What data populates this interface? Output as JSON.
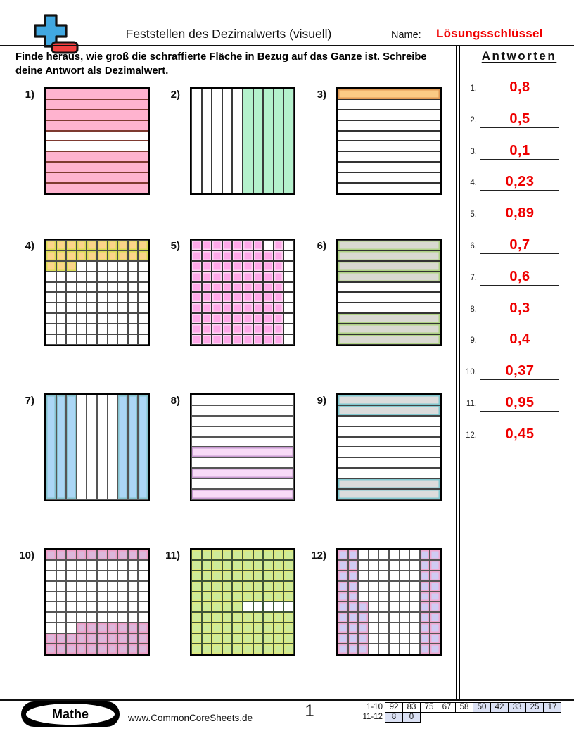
{
  "header": {
    "title": "Feststellen des Dezimalwerts (visuell)",
    "name_label": "Name:",
    "answer_key_label": "Lösungsschlüssel",
    "answer_key_color": "#f00000",
    "instructions": "Finde heraus, wie groß die schraffierte Fläche in Bezug auf das Ganze ist. Schreibe deine Antwort als Dezimalwert.",
    "logo_icon": "plus-minus-logo",
    "logo_colors": {
      "plus": "#41a8e1",
      "minus": "#f24040"
    }
  },
  "answers": {
    "title": "Antworten",
    "value_color": "#ee0000",
    "items": [
      {
        "num": "1.",
        "value": "0,8"
      },
      {
        "num": "2.",
        "value": "0,5"
      },
      {
        "num": "3.",
        "value": "0,1"
      },
      {
        "num": "4.",
        "value": "0,23"
      },
      {
        "num": "5.",
        "value": "0,89"
      },
      {
        "num": "6.",
        "value": "0,7"
      },
      {
        "num": "7.",
        "value": "0,6"
      },
      {
        "num": "8.",
        "value": "0,3"
      },
      {
        "num": "9.",
        "value": "0,4"
      },
      {
        "num": "10.",
        "value": "0,37"
      },
      {
        "num": "11.",
        "value": "0,95"
      },
      {
        "num": "12.",
        "value": "0,45"
      }
    ]
  },
  "problems": [
    {
      "label": "1)",
      "type": "rows",
      "fill": "#ffb3cf",
      "line": "#7e3a30",
      "edge": "",
      "pattern": [
        "1111001111"
      ]
    },
    {
      "label": "2)",
      "type": "cols",
      "fill": "#b4f1cc",
      "line": "#3a3a3a",
      "edge": "",
      "pattern": [
        "0000011111"
      ]
    },
    {
      "label": "3)",
      "type": "rows",
      "fill": "#fbcb85",
      "line": "#333333",
      "edge": "#e09a55",
      "pattern": [
        "1000000000"
      ]
    },
    {
      "label": "4)",
      "type": "grid",
      "fill": "#fbd48a",
      "line": "#4a4a4a",
      "edge": "#d9dd55",
      "pattern": [
        "1111111111",
        "1111111111",
        "1110000000",
        "0000000000",
        "0000000000",
        "0000000000",
        "0000000000",
        "0000000000",
        "0000000000",
        "0000000000"
      ]
    },
    {
      "label": "5)",
      "type": "grid",
      "fill": "#ffa9e9",
      "line": "#333333",
      "edge": "#ffd6f4",
      "pattern": [
        "1111111010",
        "1111111110",
        "1111111110",
        "1111111110",
        "1111111110",
        "1111111110",
        "1111111110",
        "1111111110",
        "1111111110",
        "1111111110"
      ]
    },
    {
      "label": "6)",
      "type": "rows",
      "fill": "#d9d9d1",
      "line": "#333333",
      "edge": "#aed184",
      "pattern": [
        "1111000111"
      ]
    },
    {
      "label": "7)",
      "type": "cols",
      "fill": "#abd6f5",
      "line": "#555555",
      "edge": "#85c2cc",
      "pattern": [
        "1110000111"
      ]
    },
    {
      "label": "8)",
      "type": "rows",
      "fill": "#f8daf7",
      "line": "#555555",
      "edge": "#c79ad0",
      "pattern": [
        "0000010101"
      ]
    },
    {
      "label": "9)",
      "type": "rows",
      "fill": "#dcdcdc",
      "line": "#444444",
      "edge": "#82c8cf",
      "pattern": [
        "1100000011"
      ]
    },
    {
      "label": "10)",
      "type": "grid",
      "fill": "#dcb7db",
      "line": "#555555",
      "edge": "#f09ec6",
      "pattern": [
        "1111111111",
        "0000000000",
        "0000000000",
        "0000000000",
        "0000000000",
        "0000000000",
        "0000000000",
        "0001111111",
        "1111111111",
        "1111111111"
      ]
    },
    {
      "label": "11)",
      "type": "grid",
      "fill": "#cdeb9a",
      "line": "#3d5438",
      "edge": "#dfe97d",
      "pattern": [
        "1111111111",
        "1111111111",
        "1111111111",
        "1111111111",
        "1111111111",
        "1111100000",
        "1111111111",
        "1111111111",
        "1111111111",
        "1111111111"
      ]
    },
    {
      "label": "12)",
      "type": "grid",
      "fill": "#cfcbf3",
      "line": "#555555",
      "edge": "#efa8cf",
      "pattern": [
        "1100000011",
        "1100000011",
        "1100000011",
        "1100000011",
        "1100000011",
        "1110000011",
        "1110000011",
        "1110000011",
        "1110000011",
        "1110000011"
      ]
    }
  ],
  "footer": {
    "subject": "Mathe",
    "website": "www.CommonCoreSheets.de",
    "page_number": "1",
    "score_table": {
      "highlight_color": "#dbe1f4",
      "rows": [
        {
          "label": "1-10",
          "cells": [
            {
              "v": "92",
              "hl": false
            },
            {
              "v": "83",
              "hl": false
            },
            {
              "v": "75",
              "hl": false
            },
            {
              "v": "67",
              "hl": false
            },
            {
              "v": "58",
              "hl": false
            },
            {
              "v": "50",
              "hl": true
            },
            {
              "v": "42",
              "hl": true
            },
            {
              "v": "33",
              "hl": true
            },
            {
              "v": "25",
              "hl": true
            },
            {
              "v": "17",
              "hl": true
            }
          ]
        },
        {
          "label": "11-12",
          "cells": [
            {
              "v": "8",
              "hl": true
            },
            {
              "v": "0",
              "hl": true
            }
          ]
        }
      ]
    }
  }
}
